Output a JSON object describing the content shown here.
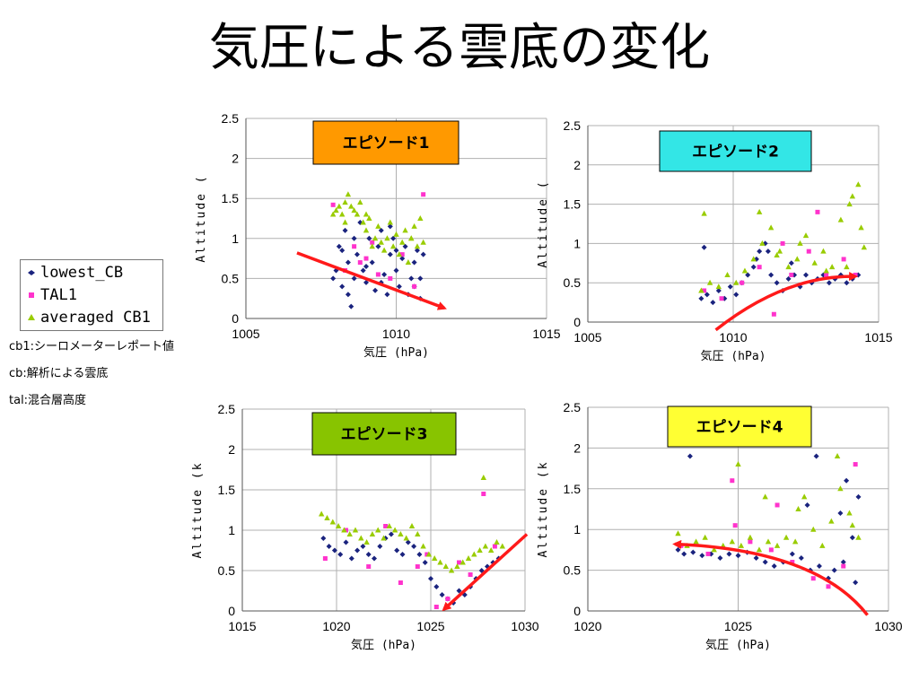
{
  "title": "気圧による雲底の変化",
  "legend": [
    {
      "label": "lowest_CB",
      "marker": "diamond",
      "color": "#1a237e"
    },
    {
      "label": "TAL1",
      "marker": "square",
      "color": "#ff33cc"
    },
    {
      "label": "averaged CB1",
      "marker": "triangle",
      "color": "#99cc00"
    }
  ],
  "notes": [
    "cb1:シーロメーターレポート値",
    "cb:解析による雲底",
    "tal:混合層高度"
  ],
  "colors": {
    "lowest": "#1a237e",
    "tal": "#ff33cc",
    "avg": "#99cc00",
    "arrow": "#ff1a1a",
    "grid": "#b0b0b0"
  },
  "chart_data": [
    {
      "type": "scatter",
      "episode_label": "エピソード1",
      "episode_label_color": "#ff9900",
      "xlabel": "気圧 (hPa)",
      "ylabel": "Altitude (",
      "xlim": [
        1005,
        1015
      ],
      "ylim": [
        0,
        2.5
      ],
      "xticks": [
        1005,
        1010,
        1015
      ],
      "yticks": [
        0,
        0.5,
        1,
        1.5,
        2,
        2.5
      ],
      "grid": true,
      "data_x_range": [
        1007.8,
        1011.0
      ],
      "trend_arrow": {
        "from": [
          1006.7,
          0.82
        ],
        "to": [
          1011.6,
          0.13
        ]
      },
      "series": [
        {
          "name": "lowest_CB",
          "x": [
            1007.9,
            1008.0,
            1008.1,
            1008.2,
            1008.3,
            1008.4,
            1008.5,
            1008.6,
            1008.7,
            1008.8,
            1008.9,
            1009.0,
            1009.1,
            1009.2,
            1009.3,
            1009.4,
            1009.5,
            1009.6,
            1009.7,
            1009.8,
            1009.9,
            1010.0,
            1010.1,
            1010.2,
            1010.3,
            1010.4,
            1010.5,
            1010.6,
            1010.7,
            1010.8,
            1010.9,
            1008.4,
            1008.6,
            1009.0,
            1009.5,
            1010.0,
            1010.6,
            1008.2,
            1009.8,
            1010.8
          ],
          "y": [
            0.5,
            0.6,
            0.9,
            0.4,
            1.1,
            0.7,
            0.15,
            0.5,
            0.8,
            1.2,
            0.6,
            0.45,
            1.0,
            0.7,
            0.35,
            0.9,
            1.1,
            0.55,
            0.3,
            0.8,
            1.0,
            0.6,
            0.4,
            0.75,
            0.9,
            0.3,
            0.5,
            0.7,
            0.85,
            0.25,
            0.8,
            0.3,
            1.0,
            0.65,
            0.45,
            0.85,
            0.4,
            0.85,
            1.15,
            0.5
          ]
        },
        {
          "name": "TAL1",
          "x": [
            1007.9,
            1008.3,
            1008.6,
            1009.0,
            1009.4,
            1009.8,
            1010.2,
            1010.6,
            1010.9,
            1009.2,
            1008.8
          ],
          "y": [
            1.42,
            0.6,
            0.9,
            0.75,
            0.55,
            0.5,
            0.8,
            0.4,
            1.55,
            0.95,
            0.7
          ]
        },
        {
          "name": "averaged CB1",
          "x": [
            1007.9,
            1008.0,
            1008.1,
            1008.2,
            1008.3,
            1008.4,
            1008.5,
            1008.6,
            1008.7,
            1008.8,
            1008.9,
            1009.0,
            1009.1,
            1009.2,
            1009.3,
            1009.4,
            1009.5,
            1009.6,
            1009.7,
            1009.8,
            1009.9,
            1010.0,
            1010.1,
            1010.2,
            1010.3,
            1010.4,
            1010.5,
            1010.6,
            1010.7,
            1010.8,
            1010.9,
            1008.3,
            1009.0,
            1010.5
          ],
          "y": [
            1.3,
            1.35,
            1.4,
            1.3,
            1.45,
            1.55,
            1.4,
            1.35,
            1.3,
            1.45,
            1.2,
            1.1,
            1.25,
            0.9,
            1.0,
            1.15,
            0.95,
            0.85,
            1.0,
            1.2,
            0.9,
            1.05,
            0.8,
            0.95,
            1.1,
            0.7,
            1.0,
            1.15,
            0.9,
            1.25,
            0.95,
            1.2,
            1.3,
            1.0
          ]
        }
      ]
    },
    {
      "type": "scatter",
      "episode_label": "エピソード2",
      "episode_label_color": "#33e6e6",
      "xlabel": "気圧 (hPa)",
      "ylabel": "Altitude (",
      "xlim": [
        1005,
        1015
      ],
      "ylim": [
        0,
        2.5
      ],
      "xticks": [
        1005,
        1010,
        1015
      ],
      "yticks": [
        0,
        0.5,
        1,
        1.5,
        2,
        2.5
      ],
      "grid": true,
      "data_x_range": [
        1008.8,
        1014.5
      ],
      "trend_arrow": {
        "from": [
          1009.4,
          -0.1
        ],
        "to": [
          1014.2,
          0.58
        ]
      },
      "series": [
        {
          "name": "lowest_CB",
          "x": [
            1008.9,
            1009.1,
            1009.3,
            1009.5,
            1009.7,
            1009.9,
            1010.1,
            1010.3,
            1010.5,
            1010.7,
            1010.9,
            1011.1,
            1011.3,
            1011.5,
            1011.7,
            1011.9,
            1012.1,
            1012.3,
            1012.5,
            1012.7,
            1012.9,
            1013.1,
            1013.3,
            1013.5,
            1013.7,
            1013.9,
            1014.1,
            1014.3,
            1009.0,
            1010.8,
            1011.2,
            1012.0
          ],
          "y": [
            0.3,
            0.35,
            0.25,
            0.4,
            0.3,
            0.45,
            0.35,
            0.5,
            0.6,
            0.7,
            0.9,
            1.0,
            0.6,
            0.5,
            0.4,
            0.55,
            0.6,
            0.45,
            0.6,
            0.5,
            0.55,
            0.6,
            0.5,
            0.55,
            0.6,
            0.5,
            0.55,
            0.6,
            0.95,
            0.8,
            0.9,
            0.75
          ]
        },
        {
          "name": "TAL1",
          "x": [
            1009.0,
            1009.6,
            1010.3,
            1010.9,
            1011.4,
            1012.0,
            1012.6,
            1013.2,
            1013.8,
            1014.2,
            1011.7,
            1012.9
          ],
          "y": [
            0.4,
            0.3,
            0.5,
            0.7,
            0.1,
            0.6,
            0.9,
            0.6,
            0.8,
            0.6,
            1.0,
            1.4
          ]
        },
        {
          "name": "averaged CB1",
          "x": [
            1008.9,
            1009.2,
            1009.5,
            1009.8,
            1010.1,
            1010.4,
            1010.7,
            1011.0,
            1011.3,
            1011.6,
            1011.9,
            1012.2,
            1012.5,
            1012.8,
            1013.1,
            1013.4,
            1013.7,
            1014.0,
            1014.3,
            1014.5,
            1010.9,
            1011.5,
            1012.3,
            1013.2,
            1014.1,
            1014.4,
            1009.0,
            1013.9
          ],
          "y": [
            0.4,
            0.5,
            0.45,
            0.6,
            0.5,
            0.65,
            0.8,
            1.0,
            1.2,
            0.9,
            0.7,
            0.8,
            1.1,
            0.75,
            0.9,
            0.7,
            1.3,
            1.5,
            1.75,
            0.95,
            1.4,
            0.85,
            1.0,
            0.65,
            1.6,
            1.2,
            1.38,
            0.7
          ]
        }
      ]
    },
    {
      "type": "scatter",
      "episode_label": "エピソード3",
      "episode_label_color": "#88c400",
      "xlabel": "気圧 (hPa)",
      "ylabel": "Altitude (k",
      "xlim": [
        1015,
        1030
      ],
      "ylim": [
        0,
        2.5
      ],
      "xticks": [
        1015,
        1020,
        1025,
        1030
      ],
      "yticks": [
        0,
        0.5,
        1,
        1.5,
        2,
        2.5
      ],
      "grid": true,
      "data_x_range": [
        1019.2,
        1028.8
      ],
      "trend_arrow": {
        "from": [
          1030.1,
          0.95
        ],
        "to": [
          1025.7,
          0.02
        ]
      },
      "series": [
        {
          "name": "lowest_CB",
          "x": [
            1019.3,
            1019.6,
            1019.9,
            1020.2,
            1020.5,
            1020.8,
            1021.1,
            1021.4,
            1021.7,
            1022.0,
            1022.3,
            1022.6,
            1022.9,
            1023.2,
            1023.5,
            1023.8,
            1024.1,
            1024.4,
            1024.7,
            1025.0,
            1025.3,
            1025.6,
            1025.9,
            1026.2,
            1026.5,
            1026.8,
            1027.1,
            1027.4,
            1027.7,
            1028.0,
            1028.3,
            1028.6
          ],
          "y": [
            0.9,
            0.8,
            0.75,
            0.7,
            0.85,
            0.65,
            0.75,
            0.8,
            0.7,
            0.65,
            0.8,
            0.9,
            0.95,
            0.75,
            0.7,
            0.85,
            0.8,
            0.7,
            0.6,
            0.4,
            0.3,
            0.2,
            0.15,
            0.1,
            0.25,
            0.2,
            0.3,
            0.4,
            0.5,
            0.55,
            0.6,
            0.65
          ]
        },
        {
          "name": "TAL1",
          "x": [
            1019.4,
            1020.5,
            1021.7,
            1022.6,
            1023.4,
            1024.3,
            1024.8,
            1025.3,
            1025.9,
            1026.5,
            1027.1,
            1027.8,
            1028.4
          ],
          "y": [
            0.65,
            1.0,
            0.55,
            1.05,
            0.35,
            0.55,
            0.7,
            0.05,
            0.15,
            0.6,
            0.45,
            1.45,
            0.8
          ]
        },
        {
          "name": "averaged CB1",
          "x": [
            1019.2,
            1019.5,
            1019.8,
            1020.1,
            1020.4,
            1020.7,
            1021.0,
            1021.3,
            1021.6,
            1021.9,
            1022.2,
            1022.5,
            1022.8,
            1023.1,
            1023.4,
            1023.7,
            1024.0,
            1024.3,
            1024.6,
            1024.9,
            1025.2,
            1025.5,
            1025.8,
            1026.1,
            1026.4,
            1026.7,
            1027.0,
            1027.3,
            1027.6,
            1027.9,
            1028.2,
            1028.5,
            1028.8,
            1027.8
          ],
          "y": [
            1.2,
            1.15,
            1.1,
            1.05,
            1.0,
            0.95,
            1.0,
            0.9,
            0.85,
            0.95,
            1.0,
            0.9,
            1.05,
            1.0,
            0.95,
            0.9,
            1.05,
            0.95,
            0.8,
            0.7,
            0.65,
            0.6,
            0.55,
            0.5,
            0.55,
            0.6,
            0.65,
            0.7,
            0.75,
            0.8,
            0.75,
            0.85,
            0.8,
            1.65
          ]
        }
      ]
    },
    {
      "type": "scatter",
      "episode_label": "エピソード4",
      "episode_label_color": "#ffff33",
      "xlabel": "気圧 (hPa)",
      "ylabel": "Altitude (k",
      "xlim": [
        1020,
        1030
      ],
      "ylim": [
        0,
        2.5
      ],
      "xticks": [
        1020,
        1025,
        1030
      ],
      "yticks": [
        0,
        0.5,
        1,
        1.5,
        2,
        2.5
      ],
      "grid": true,
      "data_x_range": [
        1023.0,
        1029.0
      ],
      "trend_arrow": {
        "from": [
          1029.3,
          -0.05
        ],
        "to": [
          1022.9,
          0.82
        ]
      },
      "series": [
        {
          "name": "lowest_CB",
          "x": [
            1023.0,
            1023.2,
            1023.5,
            1023.8,
            1024.1,
            1024.4,
            1024.7,
            1025.0,
            1025.3,
            1025.6,
            1025.9,
            1026.2,
            1026.5,
            1026.8,
            1027.1,
            1027.4,
            1027.7,
            1028.0,
            1028.2,
            1028.4,
            1028.6,
            1028.8,
            1029.0,
            1023.4,
            1027.6,
            1028.5,
            1028.9,
            1027.3
          ],
          "y": [
            0.75,
            0.7,
            0.72,
            0.68,
            0.7,
            0.65,
            0.7,
            0.68,
            0.72,
            0.65,
            0.6,
            0.55,
            0.6,
            0.7,
            0.65,
            0.5,
            0.55,
            0.4,
            0.5,
            1.2,
            1.6,
            0.9,
            1.4,
            1.9,
            1.9,
            0.6,
            0.35,
            1.3
          ]
        },
        {
          "name": "TAL1",
          "x": [
            1023.1,
            1024.0,
            1024.8,
            1025.4,
            1026.1,
            1026.8,
            1027.5,
            1028.0,
            1028.5,
            1028.9,
            1024.9,
            1026.3
          ],
          "y": [
            0.8,
            0.7,
            1.6,
            0.85,
            0.75,
            0.6,
            0.4,
            0.3,
            0.55,
            1.8,
            1.05,
            1.3
          ]
        },
        {
          "name": "averaged CB1",
          "x": [
            1023.0,
            1023.3,
            1023.6,
            1023.9,
            1024.2,
            1024.5,
            1024.8,
            1025.1,
            1025.4,
            1025.7,
            1026.0,
            1026.3,
            1026.6,
            1026.9,
            1027.2,
            1027.5,
            1027.8,
            1028.1,
            1028.4,
            1028.7,
            1029.0,
            1025.0,
            1025.9,
            1027.0,
            1028.3,
            1028.8
          ],
          "y": [
            0.95,
            0.8,
            0.85,
            0.9,
            0.75,
            0.8,
            0.85,
            0.8,
            0.9,
            0.75,
            0.85,
            0.8,
            0.9,
            0.85,
            1.4,
            1.0,
            0.8,
            1.1,
            1.5,
            1.2,
            0.9,
            1.8,
            1.4,
            1.25,
            1.9,
            1.05
          ]
        }
      ]
    }
  ]
}
